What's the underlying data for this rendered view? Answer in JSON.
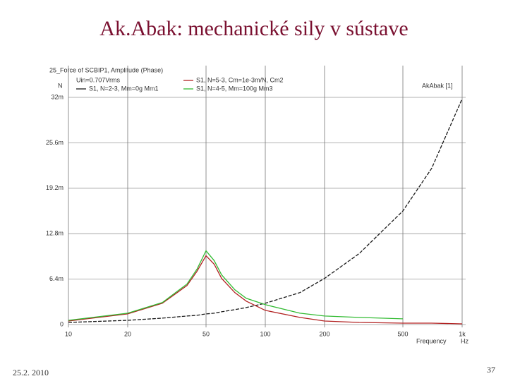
{
  "slide": {
    "title": "Ak.Abak: mechanické sily v sústave",
    "date": "25.2. 2010",
    "page": "37"
  },
  "chart_data": {
    "type": "line",
    "title": "25_Force of SCBIP1, Amplitude (Phase)",
    "annotations": [
      "Uin=0.707Vrms",
      "AkAbak [1]"
    ],
    "y_label": "N",
    "x_label": "Frequency",
    "x_unit": "Hz",
    "x": [
      10,
      20,
      30,
      40,
      45,
      50,
      55,
      60,
      70,
      80,
      100,
      150,
      200,
      300,
      500,
      700,
      1000
    ],
    "series": [
      {
        "name": "S1, N=2-3, Mm=0g Mm1",
        "color": "#1a1a1a",
        "dashed": true,
        "values": [
          0.0003,
          0.0006,
          0.0009,
          0.0012,
          0.0013,
          0.0015,
          0.0016,
          0.0018,
          0.0021,
          0.0024,
          0.003,
          0.0045,
          0.0065,
          0.01,
          0.016,
          0.022,
          0.0318
        ]
      },
      {
        "name": "S1, N=5-3, Cm=1e-3m/N, Cm2",
        "color": "#b22222",
        "values": [
          0.0005,
          0.0015,
          0.003,
          0.0055,
          0.0075,
          0.0097,
          0.0085,
          0.0065,
          0.0045,
          0.0033,
          0.002,
          0.001,
          0.0005,
          0.0003,
          0.0002,
          0.0002,
          0.0001
        ]
      },
      {
        "name": "S1, N=4-5, Mm=100g Mm3",
        "color": "#33bb33",
        "values": [
          0.0006,
          0.0016,
          0.0031,
          0.0057,
          0.0078,
          0.0104,
          0.009,
          0.007,
          0.0049,
          0.0037,
          0.0028,
          0.0016,
          0.0012,
          0.001,
          0.0008,
          null,
          null
        ]
      }
    ],
    "xlim": [
      10,
      1000
    ],
    "x_log": true,
    "xticks": [
      10,
      20,
      50,
      100,
      200,
      500,
      {
        "value": 1000,
        "label": "1k"
      }
    ],
    "ylim": [
      0,
      0.032
    ],
    "yticks": [
      {
        "value": 0,
        "label": "0"
      },
      {
        "value": 0.0064,
        "label": "6.4m"
      },
      {
        "value": 0.0128,
        "label": "12.8m"
      },
      {
        "value": 0.0192,
        "label": "19.2m"
      },
      {
        "value": 0.0256,
        "label": "25.6m"
      },
      {
        "value": 0.032,
        "label": "32m"
      }
    ],
    "grid": true
  }
}
